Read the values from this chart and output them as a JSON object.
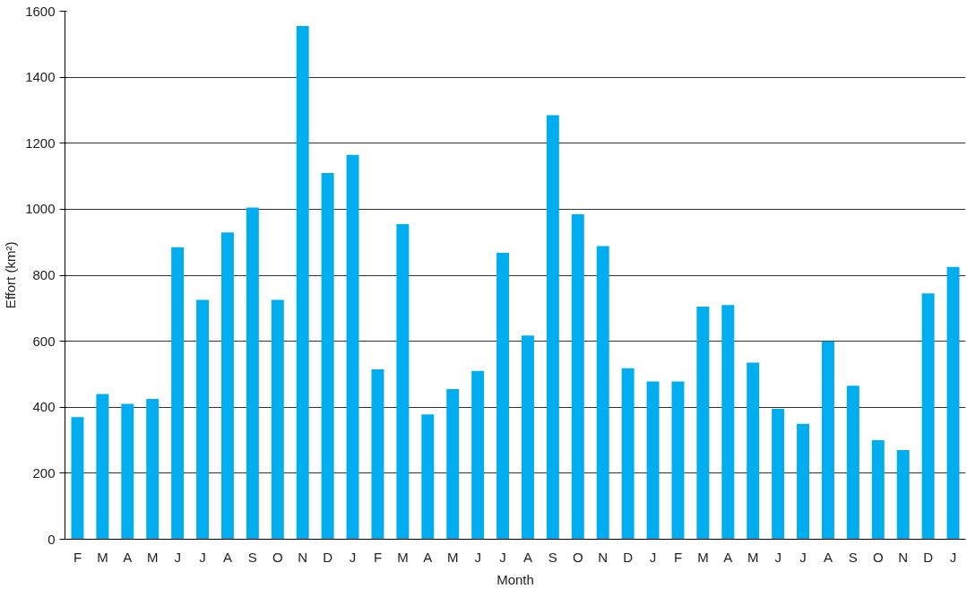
{
  "chart_data": {
    "type": "bar",
    "xlabel": "Month",
    "ylabel": "Effort (km²)",
    "categories": [
      "F",
      "M",
      "A",
      "M",
      "J",
      "J",
      "A",
      "S",
      "O",
      "N",
      "D",
      "J",
      "F",
      "M",
      "A",
      "M",
      "J",
      "J",
      "A",
      "S",
      "O",
      "N",
      "D",
      "J",
      "F",
      "M",
      "A",
      "M",
      "J",
      "J",
      "A",
      "S",
      "O",
      "N",
      "D",
      "J"
    ],
    "values": [
      370,
      440,
      410,
      425,
      885,
      725,
      930,
      1005,
      725,
      1555,
      1110,
      1165,
      515,
      955,
      378,
      455,
      510,
      868,
      617,
      1285,
      985,
      888,
      518,
      478,
      478,
      705,
      710,
      535,
      395,
      350,
      600,
      465,
      300,
      270,
      745,
      825
    ],
    "color": "#00aeef",
    "ylim": [
      0,
      1600
    ],
    "yticks": [
      0,
      200,
      400,
      600,
      800,
      1000,
      1200,
      1400,
      1600
    ],
    "grid": "y"
  }
}
